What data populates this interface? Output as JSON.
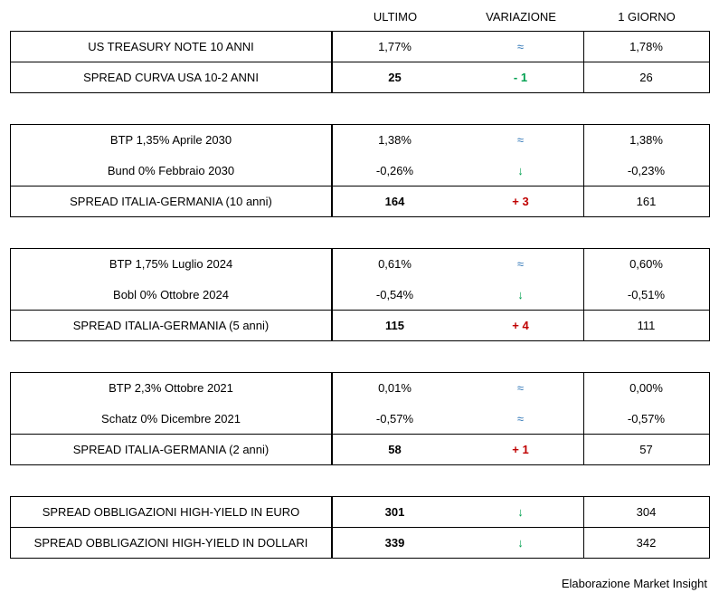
{
  "header": {
    "ultimo": "ULTIMO",
    "variazione": "VARIAZIONE",
    "giorno": "1 GIORNO"
  },
  "groups": [
    {
      "rows": [
        {
          "label": "US TREASURY NOTE 10 ANNI",
          "ultimo": "1,77%",
          "variazione": {
            "text": "≈",
            "color": "#2e75b6"
          },
          "giorno": "1,78%"
        }
      ],
      "spreads": [
        {
          "label": "SPREAD CURVA USA 10-2 ANNI",
          "ultimo": "25",
          "variazione": {
            "text": "- 1",
            "color": "#00a050"
          },
          "giorno": "26"
        }
      ]
    },
    {
      "rows": [
        {
          "label": "BTP 1,35% Aprile 2030",
          "ultimo": "1,38%",
          "variazione": {
            "text": "≈",
            "color": "#2e75b6"
          },
          "giorno": "1,38%"
        },
        {
          "label": "Bund 0% Febbraio 2030",
          "ultimo": "-0,26%",
          "variazione": {
            "text": "↓",
            "color": "#00a050"
          },
          "giorno": "-0,23%"
        }
      ],
      "spreads": [
        {
          "label": "SPREAD ITALIA-GERMANIA (10 anni)",
          "ultimo": "164",
          "variazione": {
            "text": "+ 3",
            "color": "#c00000"
          },
          "giorno": "161"
        }
      ]
    },
    {
      "rows": [
        {
          "label": "BTP 1,75% Luglio 2024",
          "ultimo": "0,61%",
          "variazione": {
            "text": "≈",
            "color": "#2e75b6"
          },
          "giorno": "0,60%"
        },
        {
          "label": "Bobl 0% Ottobre 2024",
          "ultimo": "-0,54%",
          "variazione": {
            "text": "↓",
            "color": "#00a050"
          },
          "giorno": "-0,51%"
        }
      ],
      "spreads": [
        {
          "label": "SPREAD ITALIA-GERMANIA (5 anni)",
          "ultimo": "115",
          "variazione": {
            "text": "+ 4",
            "color": "#c00000"
          },
          "giorno": "111"
        }
      ]
    },
    {
      "rows": [
        {
          "label": "BTP 2,3% Ottobre 2021",
          "ultimo": "0,01%",
          "variazione": {
            "text": "≈",
            "color": "#2e75b6"
          },
          "giorno": "0,00%"
        },
        {
          "label": "Schatz 0% Dicembre 2021",
          "ultimo": "-0,57%",
          "variazione": {
            "text": "≈",
            "color": "#2e75b6"
          },
          "giorno": "-0,57%"
        }
      ],
      "spreads": [
        {
          "label": "SPREAD ITALIA-GERMANIA (2 anni)",
          "ultimo": "58",
          "variazione": {
            "text": "+ 1",
            "color": "#c00000"
          },
          "giorno": "57"
        }
      ]
    },
    {
      "rows": [],
      "spreads": [
        {
          "label": "SPREAD OBBLIGAZIONI HIGH-YIELD IN EURO",
          "ultimo": "301",
          "variazione": {
            "text": "↓",
            "color": "#00a050"
          },
          "giorno": "304"
        },
        {
          "label": "SPREAD OBBLIGAZIONI HIGH-YIELD IN DOLLARI",
          "ultimo": "339",
          "variazione": {
            "text": "↓",
            "color": "#00a050"
          },
          "giorno": "342"
        }
      ]
    }
  ],
  "footer": "Elaborazione Market Insight"
}
